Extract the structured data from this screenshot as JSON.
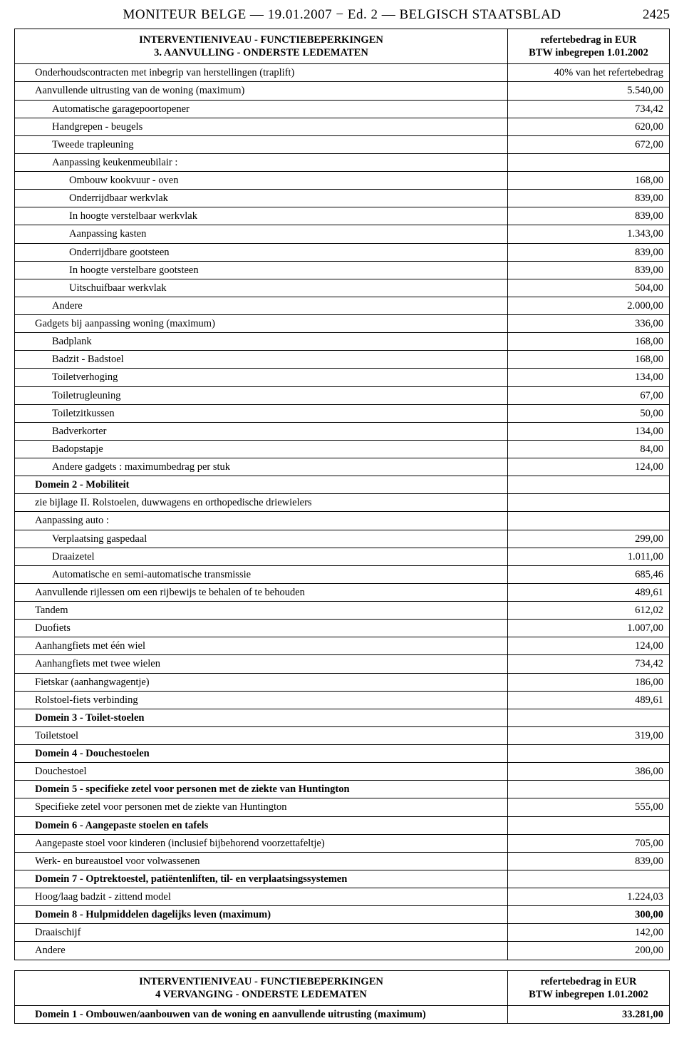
{
  "header": {
    "title": "MONITEUR BELGE — 19.01.2007 − Ed. 2 — BELGISCH STAATSBLAD",
    "page_number": "2425"
  },
  "table1": {
    "head_left_line1": "INTERVENTIENIVEAU - FUNCTIEBEPERKINGEN",
    "head_left_line2": "3. AANVULLING - ONDERSTE LEDEMATEN",
    "head_right_line1": "refertebedrag in EUR",
    "head_right_line2": "BTW inbegrepen 1.01.2002",
    "rows": [
      {
        "label": "Onderhoudscontracten met inbegrip van herstellingen (traplift)",
        "value": "40% van het refertebedrag",
        "indent": 1
      },
      {
        "label": "Aanvullende uitrusting van de woning (maximum)",
        "value": "5.540,00",
        "indent": 1
      },
      {
        "label": "Automatische garagepoortopener",
        "value": "734,42",
        "indent": 2
      },
      {
        "label": "Handgrepen - beugels",
        "value": "620,00",
        "indent": 2
      },
      {
        "label": "Tweede trapleuning",
        "value": "672,00",
        "indent": 2
      },
      {
        "label": "Aanpassing keukenmeubilair :",
        "value": "",
        "indent": 2
      },
      {
        "label": "Ombouw kookvuur - oven",
        "value": "168,00",
        "indent": 3
      },
      {
        "label": "Onderrijdbaar werkvlak",
        "value": "839,00",
        "indent": 3
      },
      {
        "label": "In hoogte verstelbaar werkvlak",
        "value": "839,00",
        "indent": 3
      },
      {
        "label": "Aanpassing kasten",
        "value": "1.343,00",
        "indent": 3
      },
      {
        "label": "Onderrijdbare gootsteen",
        "value": "839,00",
        "indent": 3
      },
      {
        "label": "In hoogte verstelbare gootsteen",
        "value": "839,00",
        "indent": 3
      },
      {
        "label": "Uitschuifbaar werkvlak",
        "value": "504,00",
        "indent": 3
      },
      {
        "label": "Andere",
        "value": "2.000,00",
        "indent": 2
      },
      {
        "label": "Gadgets bij aanpassing woning (maximum)",
        "value": "336,00",
        "indent": 1
      },
      {
        "label": "Badplank",
        "value": "168,00",
        "indent": 2
      },
      {
        "label": "Badzit - Badstoel",
        "value": "168,00",
        "indent": 2
      },
      {
        "label": "Toiletverhoging",
        "value": "134,00",
        "indent": 2
      },
      {
        "label": "Toiletrugleuning",
        "value": "67,00",
        "indent": 2
      },
      {
        "label": "Toiletzitkussen",
        "value": "50,00",
        "indent": 2
      },
      {
        "label": "Badverkorter",
        "value": "134,00",
        "indent": 2
      },
      {
        "label": "Badopstapje",
        "value": "84,00",
        "indent": 2
      },
      {
        "label": "Andere gadgets : maximumbedrag per stuk",
        "value": "124,00",
        "indent": 2
      },
      {
        "label": "Domein 2 - Mobiliteit",
        "value": "",
        "indent": 1,
        "bold": true
      },
      {
        "label": "zie bijlage II. Rolstoelen, duwwagens en orthopedische driewielers",
        "value": "",
        "indent": 1
      },
      {
        "label": "Aanpassing auto :",
        "value": "",
        "indent": 1
      },
      {
        "label": "Verplaatsing gaspedaal",
        "value": "299,00",
        "indent": 2
      },
      {
        "label": "Draaizetel",
        "value": "1.011,00",
        "indent": 2
      },
      {
        "label": "Automatische en semi-automatische transmissie",
        "value": "685,46",
        "indent": 2
      },
      {
        "label": "Aanvullende rijlessen om een rijbewijs te behalen of te behouden",
        "value": "489,61",
        "indent": 1
      },
      {
        "label": "Tandem",
        "value": "612,02",
        "indent": 1
      },
      {
        "label": "Duofiets",
        "value": "1.007,00",
        "indent": 1
      },
      {
        "label": "Aanhangfiets met één wiel",
        "value": "124,00",
        "indent": 1
      },
      {
        "label": "Aanhangfiets met twee wielen",
        "value": "734,42",
        "indent": 1
      },
      {
        "label": "Fietskar (aanhangwagentje)",
        "value": "186,00",
        "indent": 1
      },
      {
        "label": "Rolstoel-fiets verbinding",
        "value": "489,61",
        "indent": 1
      },
      {
        "label": "Domein 3 - Toilet-stoelen",
        "value": "",
        "indent": 1,
        "bold": true
      },
      {
        "label": "Toiletstoel",
        "value": "319,00",
        "indent": 1
      },
      {
        "label": "Domein 4 - Douchestoelen",
        "value": "",
        "indent": 1,
        "bold": true
      },
      {
        "label": "Douchestoel",
        "value": "386,00",
        "indent": 1
      },
      {
        "label": "Domein 5 - specifieke zetel voor personen met de ziekte van Huntington",
        "value": "",
        "indent": 1,
        "bold": true
      },
      {
        "label": "Specifieke zetel voor personen met de ziekte van Huntington",
        "value": "555,00",
        "indent": 1
      },
      {
        "label": "Domein 6 - Aangepaste stoelen en tafels",
        "value": "",
        "indent": 1,
        "bold": true
      },
      {
        "label": "Aangepaste stoel voor kinderen (inclusief bijbehorend voorzettafeltje)",
        "value": "705,00",
        "indent": 1
      },
      {
        "label": "Werk- en bureaustoel voor volwassenen",
        "value": "839,00",
        "indent": 1
      },
      {
        "label": "Domein 7 - Optrektoestel, patiëntenliften, til- en verplaatsingssystemen",
        "value": "",
        "indent": 1,
        "bold": true
      },
      {
        "label": "Hoog/laag badzit - zittend model",
        "value": "1.224,03",
        "indent": 1
      },
      {
        "label": "Domein 8 - Hulpmiddelen dagelijks leven (maximum)",
        "value": "300,00",
        "indent": 1,
        "bold": true
      },
      {
        "label": "Draaischijf",
        "value": "142,00",
        "indent": 1
      },
      {
        "label": "Andere",
        "value": "200,00",
        "indent": 1
      }
    ]
  },
  "table2": {
    "head_left_line1": "INTERVENTIENIVEAU - FUNCTIEBEPERKINGEN",
    "head_left_line2": "4 VERVANGING - ONDERSTE LEDEMATEN",
    "head_right_line1": "refertebedrag in EUR",
    "head_right_line2": "BTW inbegrepen 1.01.2002",
    "rows": [
      {
        "label": "Domein 1 - Ombouwen/aanbouwen van de woning en aanvullende uitrusting (maximum)",
        "value": "33.281,00",
        "indent": 1,
        "bold": true
      }
    ]
  }
}
